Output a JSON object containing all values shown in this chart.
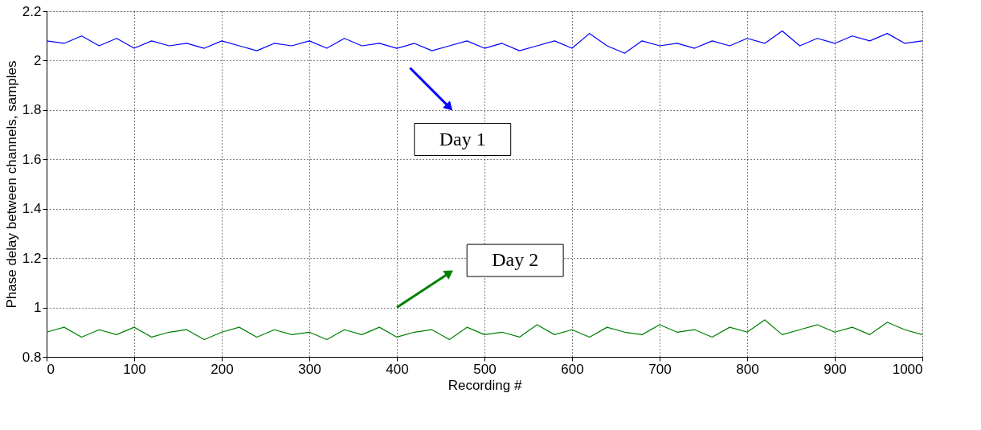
{
  "chart_data": {
    "type": "line",
    "xlabel": "Recording #",
    "ylabel": "Phase delay between channels, samples",
    "x": [
      0,
      20,
      40,
      60,
      80,
      100,
      120,
      140,
      160,
      180,
      200,
      220,
      240,
      260,
      280,
      300,
      320,
      340,
      360,
      380,
      400,
      420,
      440,
      460,
      480,
      500,
      520,
      540,
      560,
      580,
      600,
      620,
      640,
      660,
      680,
      700,
      720,
      740,
      760,
      780,
      800,
      820,
      840,
      860,
      880,
      900,
      920,
      940,
      960,
      980,
      1000
    ],
    "series": [
      {
        "color": "#0000ff",
        "values": [
          2.08,
          2.07,
          2.1,
          2.06,
          2.09,
          2.05,
          2.08,
          2.06,
          2.07,
          2.05,
          2.08,
          2.06,
          2.04,
          2.07,
          2.06,
          2.08,
          2.05,
          2.09,
          2.06,
          2.07,
          2.05,
          2.07,
          2.04,
          2.06,
          2.08,
          2.05,
          2.07,
          2.04,
          2.06,
          2.08,
          2.05,
          2.11,
          2.06,
          2.03,
          2.08,
          2.06,
          2.07,
          2.05,
          2.08,
          2.06,
          2.09,
          2.07,
          2.12,
          2.06,
          2.09,
          2.07,
          2.1,
          2.08,
          2.11,
          2.07,
          2.08
        ]
      },
      {
        "color": "#008000",
        "values": [
          0.9,
          0.92,
          0.88,
          0.91,
          0.89,
          0.92,
          0.88,
          0.9,
          0.91,
          0.87,
          0.9,
          0.92,
          0.88,
          0.91,
          0.89,
          0.9,
          0.87,
          0.91,
          0.89,
          0.92,
          0.88,
          0.9,
          0.91,
          0.87,
          0.92,
          0.89,
          0.9,
          0.88,
          0.93,
          0.89,
          0.91,
          0.88,
          0.92,
          0.9,
          0.89,
          0.93,
          0.9,
          0.91,
          0.88,
          0.92,
          0.9,
          0.95,
          0.89,
          0.91,
          0.93,
          0.9,
          0.92,
          0.89,
          0.94,
          0.91,
          0.89
        ]
      }
    ],
    "xlim": [
      0,
      1000
    ],
    "xticks": [
      0,
      100,
      200,
      300,
      400,
      500,
      600,
      700,
      800,
      900,
      1000
    ],
    "ylim": [
      0.8,
      2.2
    ],
    "yticks": [
      0.8,
      1,
      1.2,
      1.4,
      1.6,
      1.8,
      2,
      2.2
    ],
    "grid": true,
    "line_style": "solid",
    "marker": "none",
    "annotations": [
      "Day 1",
      "Day 2"
    ]
  }
}
